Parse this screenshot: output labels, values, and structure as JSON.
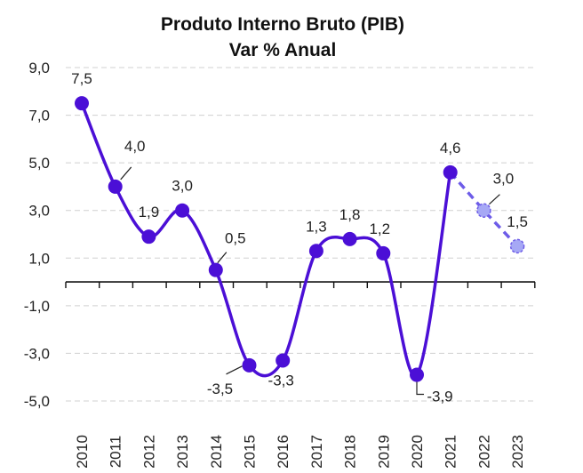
{
  "chart_data": {
    "type": "line",
    "title": "Produto Interno Bruto (PIB)",
    "subtitle": "Var % Anual",
    "categories": [
      "2010",
      "2011",
      "2012",
      "2013",
      "2014",
      "2015",
      "2016",
      "2017",
      "2018",
      "2019",
      "2020",
      "2021",
      "2022",
      "2023"
    ],
    "series": [
      {
        "values": [
          7.5,
          4.0,
          1.9,
          3.0,
          0.5,
          -3.5,
          -3.3,
          1.3,
          1.8,
          1.2,
          -3.9,
          4.6,
          null,
          null
        ],
        "color": "#4b0fd6",
        "style": "solid smoothed"
      },
      {
        "values": [
          null,
          null,
          null,
          null,
          null,
          null,
          null,
          null,
          null,
          null,
          null,
          4.6,
          3.0,
          1.5
        ],
        "color": "#6d5ce8",
        "marker_fill": "#a6a8f5",
        "style": "dashed"
      }
    ],
    "data_labels": [
      "7,5",
      "4,0",
      "1,9",
      "3,0",
      "0,5",
      "-3,5",
      "-3,3",
      "1,3",
      "1,8",
      "1,2",
      "-3,9",
      "4,6",
      "3,0",
      "1,5"
    ],
    "y_ticks": [
      "9,0",
      "7,0",
      "5,0",
      "3,0",
      "1,0",
      "-1,0",
      "-3,0",
      "-5,0"
    ],
    "ylim": [
      -5,
      9
    ],
    "grid": "horizontal dashed",
    "legend": "none"
  }
}
